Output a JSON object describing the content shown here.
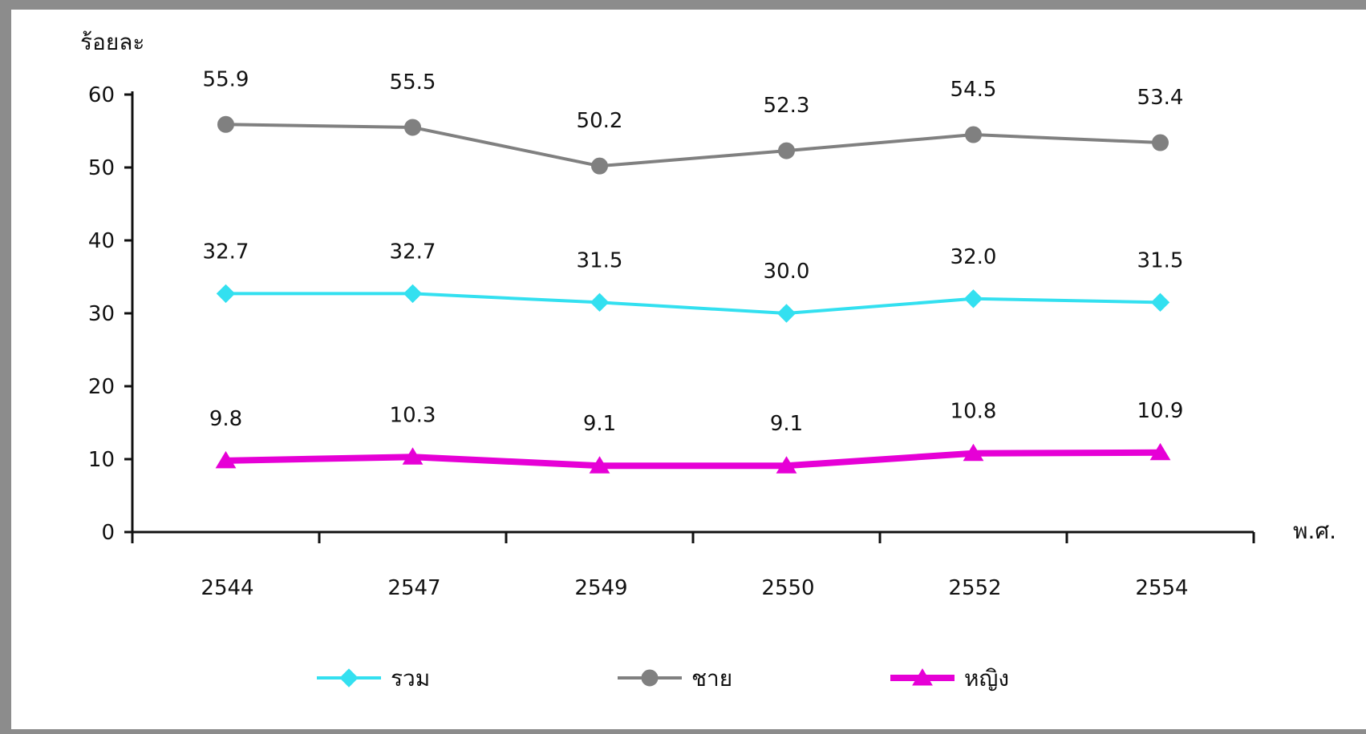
{
  "chart_data": {
    "type": "line",
    "ylabel": "ร้อยละ",
    "xlabel": "พ.ศ.",
    "ylim": [
      0,
      60
    ],
    "yticks": [
      0,
      10,
      20,
      30,
      40,
      50,
      60
    ],
    "categories": [
      "2544",
      "2547",
      "2549",
      "2550",
      "2552",
      "2554"
    ],
    "series": [
      {
        "name": "รวม",
        "values": [
          32.7,
          32.7,
          31.5,
          30.0,
          32.0,
          31.5
        ],
        "labels": [
          "32.7",
          "32.7",
          "31.5",
          "30.0",
          "32.0",
          "31.5"
        ],
        "color": "#33e0f0",
        "marker": "diamond"
      },
      {
        "name": "ชาย",
        "values": [
          55.9,
          55.5,
          50.2,
          52.3,
          54.5,
          53.4
        ],
        "labels": [
          "55.9",
          "55.5",
          "50.2",
          "52.3",
          "54.5",
          "53.4"
        ],
        "color": "#808080",
        "marker": "circle"
      },
      {
        "name": "หญิง",
        "values": [
          9.8,
          10.3,
          9.1,
          9.1,
          10.8,
          10.9
        ],
        "labels": [
          "9.8",
          "10.3",
          "9.1",
          "9.1",
          "10.8",
          "10.9"
        ],
        "color": "#e600d6",
        "marker": "triangle"
      }
    ],
    "grid": false,
    "legend": "bottom"
  }
}
